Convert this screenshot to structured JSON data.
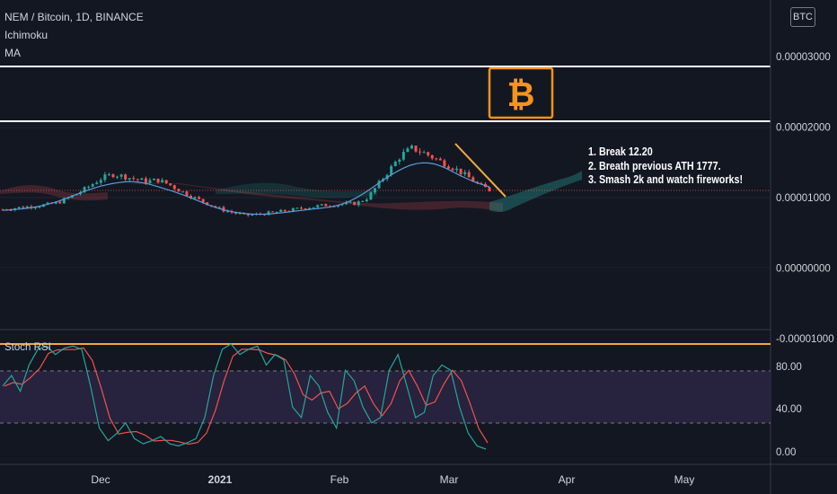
{
  "header": {
    "symbol_line": "NEM / Bitcoin, 1D, BINANCE",
    "indicator_1": "Ichimoku",
    "indicator_2": "MA",
    "currency_badge": "BTC"
  },
  "annotation": {
    "lines": [
      "1. Break 12.20",
      "2. Breath previous ATH 1777.",
      "3. Smash 2k and watch fireworks!"
    ],
    "bitcoin_symbol": "₿"
  },
  "stoch_rsi": {
    "label": "Stoch RSI",
    "ticks": [
      "80.00",
      "40.00",
      "0.00"
    ],
    "levels": [
      80,
      20
    ],
    "k_color": "#26a69a",
    "d_color": "#ef5350"
  },
  "chart_data": [
    {
      "type": "candlestick",
      "price_axis_ticks": [
        "0.00003000",
        "0.00002000",
        "0.00001000",
        "0.00000000",
        "-0.00001000"
      ],
      "date_axis_ticks": [
        "Dec",
        "2021",
        "Feb",
        "Mar",
        "Apr",
        "May"
      ],
      "horizontal_levels": [
        3e-05,
        2.12e-05
      ],
      "current_price": 1.11e-05,
      "approx_close_series": {
        "start": "2020-10-28",
        "interval": "1D",
        "values": [
          8.3e-06,
          8.5e-06,
          8.7e-06,
          8.8e-06,
          9e-06,
          9.3e-06,
          1e-05,
          1.08e-05,
          1.18e-05,
          1.28e-05,
          1.33e-05,
          1.3e-05,
          1.26e-05,
          1.23e-05,
          1.25e-05,
          1.19e-05,
          1.1e-05,
          1.02e-05,
          9.5e-06,
          8.8e-06,
          8.2e-06,
          7.8e-06,
          7.5e-06,
          7.6e-06,
          7.8e-06,
          8e-06,
          8.2e-06,
          8.5e-06,
          8.7e-06,
          8.9e-06,
          9e-06,
          9.1e-06,
          9.2e-06,
          1e-05,
          1.2e-05,
          1.4e-05,
          1.6e-05,
          1.7e-05,
          1.64e-05,
          1.56e-05,
          1.48e-05,
          1.4e-05,
          1.3e-05,
          1.18e-05,
          1.11e-05
        ]
      },
      "colors": {
        "up": "#26a69a",
        "down": "#ef5350",
        "ma": "#5b9bd5",
        "trendline": "#f2a93b",
        "level_lines": "#ffffff"
      }
    }
  ]
}
